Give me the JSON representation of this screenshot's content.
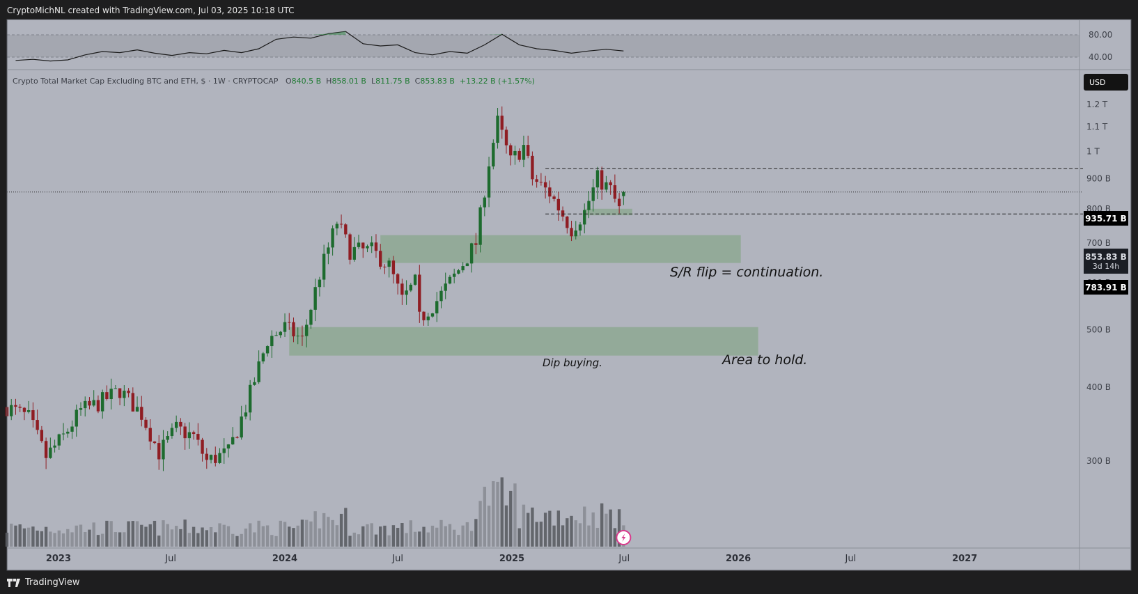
{
  "header": {
    "title": "CryptoMichNL created with TradingView.com, Jul 03, 2025 10:18 UTC"
  },
  "footer": {
    "logo_text": "TradingView"
  },
  "legend": {
    "symbol": "Crypto Total Market Cap Excluding BTC and ETH, $ · 1W · CRYPTOCAP",
    "open_label": "O",
    "open": "840.5 B",
    "high_label": "H",
    "high": "858.01 B",
    "low_label": "L",
    "low": "811.75 B",
    "close_label": "C",
    "close": "853.83 B",
    "change": "+13.22 B (+1.57%)"
  },
  "currency": "USD",
  "price_tags": {
    "resistance": "935.71 B",
    "current": "853.83 B",
    "countdown": "3d 14h",
    "support": "783.91 B"
  },
  "annotations": {
    "sr_flip": "S/R flip = continuation.",
    "dip_buying": "Dip buying.",
    "area_to_hold": "Area to hold."
  },
  "colors": {
    "up": "#1d6b2e",
    "down": "#8f1d23",
    "zone": "#8ea893",
    "background": "#b1b4be",
    "frame": "#1e1e1f"
  },
  "chart_data": [
    {
      "type": "line",
      "title": "",
      "y_ticks": [
        "80.00",
        "40.00"
      ],
      "ylim": [
        20,
        95
      ],
      "band": [
        40,
        80
      ],
      "x": [
        "2022-10-24",
        "2022-11-21",
        "2022-12-19",
        "2023-01-16",
        "2023-02-13",
        "2023-03-13",
        "2023-04-10",
        "2023-05-08",
        "2023-06-05",
        "2023-07-03",
        "2023-07-31",
        "2023-08-28",
        "2023-09-25",
        "2023-10-23",
        "2023-11-20",
        "2023-12-18",
        "2024-01-15",
        "2024-02-12",
        "2024-03-11",
        "2024-04-08",
        "2024-05-06",
        "2024-06-03",
        "2024-07-01",
        "2024-07-29",
        "2024-08-26",
        "2024-09-23",
        "2024-10-21",
        "2024-11-18",
        "2024-12-16",
        "2025-01-13",
        "2025-02-10",
        "2025-03-10",
        "2025-04-07",
        "2025-05-05",
        "2025-06-02",
        "2025-06-30"
      ],
      "values": [
        34,
        36,
        33,
        35,
        44,
        50,
        48,
        53,
        47,
        43,
        48,
        46,
        52,
        48,
        55,
        72,
        76,
        74,
        82,
        86,
        64,
        60,
        62,
        48,
        44,
        50,
        47,
        62,
        81,
        62,
        55,
        52,
        47,
        51,
        54,
        51
      ]
    },
    {
      "type": "candlestick",
      "title": "Crypto Total Market Cap Excluding BTC and ETH, $ · 1W · CRYPTOCAP",
      "y_unit": "B",
      "y_scale": "log",
      "ylim": [
        215,
        1250
      ],
      "y_ticks": [
        "1.2 T",
        "1.1 T",
        "1 T",
        "900 B",
        "800 B",
        "700 B",
        "600 B",
        "500 B",
        "400 B",
        "300 B"
      ],
      "x_ticks": [
        "2023",
        "Jul",
        "2024",
        "Jul",
        "2025",
        "Jul",
        "2026",
        "Jul",
        "2027"
      ],
      "x_tick_dates": [
        "2023-01-01",
        "2023-07-01",
        "2024-01-01",
        "2024-07-01",
        "2025-01-01",
        "2025-07-01",
        "2026-01-01",
        "2026-07-01",
        "2027-01-01"
      ],
      "xlim": [
        "2022-10-10",
        "2027-07-05"
      ],
      "anchor_points": [
        {
          "date": "2022-10-10",
          "value": 370
        },
        {
          "date": "2022-11-14",
          "value": 355
        },
        {
          "date": "2022-12-12",
          "value": 305
        },
        {
          "date": "2023-01-09",
          "value": 330
        },
        {
          "date": "2023-02-06",
          "value": 365
        },
        {
          "date": "2023-03-06",
          "value": 375
        },
        {
          "date": "2023-04-10",
          "value": 395
        },
        {
          "date": "2023-05-15",
          "value": 360
        },
        {
          "date": "2023-06-12",
          "value": 310
        },
        {
          "date": "2023-07-10",
          "value": 340
        },
        {
          "date": "2023-08-07",
          "value": 330
        },
        {
          "date": "2023-08-28",
          "value": 300
        },
        {
          "date": "2023-10-02",
          "value": 310
        },
        {
          "date": "2023-10-30",
          "value": 370
        },
        {
          "date": "2023-12-04",
          "value": 480
        },
        {
          "date": "2024-01-01",
          "value": 505
        },
        {
          "date": "2024-01-29",
          "value": 480
        },
        {
          "date": "2024-02-26",
          "value": 620
        },
        {
          "date": "2024-03-25",
          "value": 760
        },
        {
          "date": "2024-04-15",
          "value": 680
        },
        {
          "date": "2024-05-20",
          "value": 680
        },
        {
          "date": "2024-06-17",
          "value": 640
        },
        {
          "date": "2024-07-08",
          "value": 560
        },
        {
          "date": "2024-07-29",
          "value": 600
        },
        {
          "date": "2024-08-05",
          "value": 520
        },
        {
          "date": "2024-09-02",
          "value": 560
        },
        {
          "date": "2024-10-07",
          "value": 630
        },
        {
          "date": "2024-11-04",
          "value": 700
        },
        {
          "date": "2024-11-25",
          "value": 960
        },
        {
          "date": "2024-12-09",
          "value": 1120
        },
        {
          "date": "2024-12-30",
          "value": 960
        },
        {
          "date": "2025-01-20",
          "value": 1020
        },
        {
          "date": "2025-02-03",
          "value": 900
        },
        {
          "date": "2025-03-03",
          "value": 850
        },
        {
          "date": "2025-04-07",
          "value": 740
        },
        {
          "date": "2025-04-28",
          "value": 790
        },
        {
          "date": "2025-05-19",
          "value": 900
        },
        {
          "date": "2025-06-09",
          "value": 860
        },
        {
          "date": "2025-06-23",
          "value": 795
        },
        {
          "date": "2025-06-30",
          "value": 853.83
        }
      ],
      "last_candle": {
        "open": 840.5,
        "high": 858.01,
        "low": 811.75,
        "close": 853.83
      },
      "levels": [
        {
          "label": "935.71 B",
          "value": 935.71,
          "style": "dashed"
        },
        {
          "label": "853.83 B",
          "value": 853.83,
          "style": "dotted"
        },
        {
          "label": "783.91 B",
          "value": 783.91,
          "style": "dashed"
        }
      ],
      "zones": [
        {
          "name": "Dip buying.",
          "from": "2024-06-03",
          "to": "2026-01-05",
          "low": 648,
          "high": 722
        },
        {
          "name": "sr-flip-zone",
          "from": "2025-04-28",
          "to": "2025-07-14",
          "low": 780,
          "high": 800
        },
        {
          "name": "base-zone",
          "from": "2024-01-08",
          "to": "2026-02-02",
          "low": 452,
          "high": 505
        }
      ],
      "volume_note": "volume bars shown at bottom, peak around 2024-12"
    }
  ]
}
